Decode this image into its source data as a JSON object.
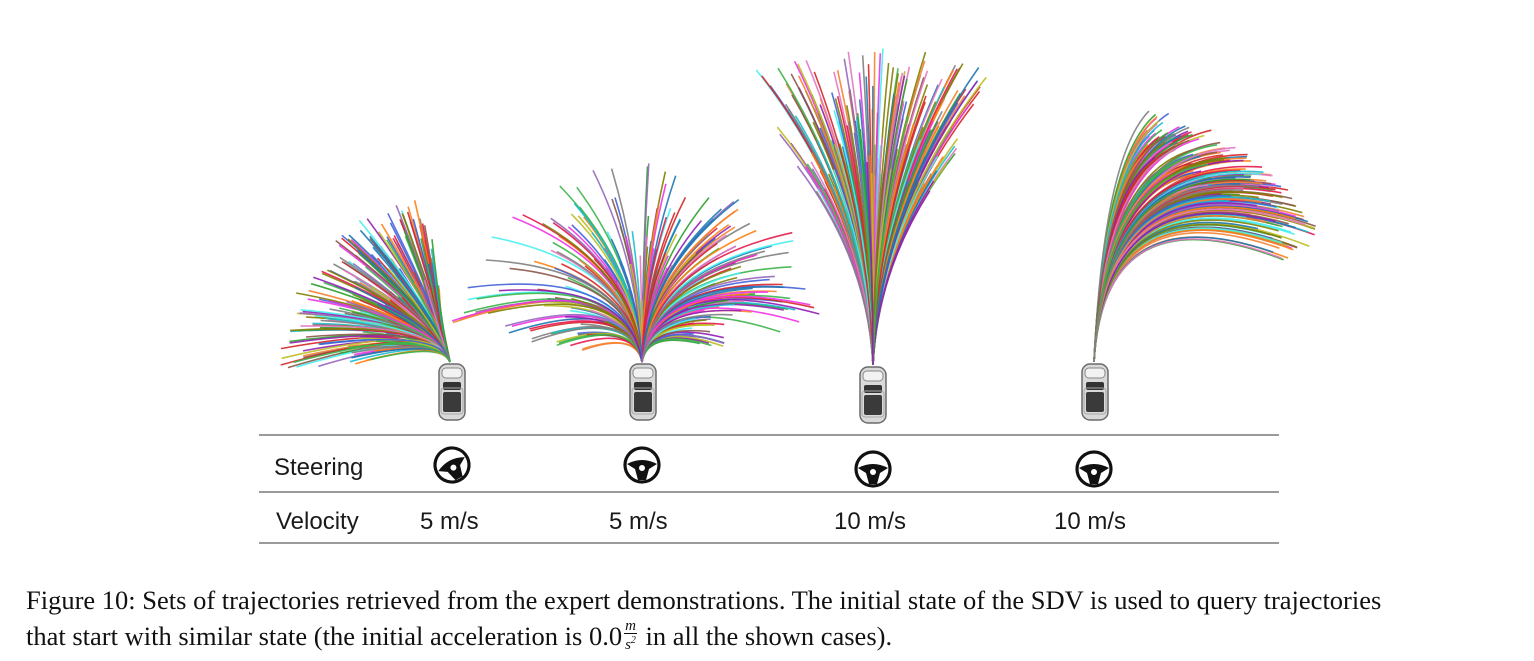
{
  "table": {
    "row_labels": {
      "steering": "Steering",
      "velocity": "Velocity"
    },
    "columns": [
      {
        "steering_icon": "steering-wheel-turned-left-icon",
        "velocity": "5 m/s"
      },
      {
        "steering_icon": "steering-wheel-straight-icon",
        "velocity": "5 m/s"
      },
      {
        "steering_icon": "steering-wheel-straight-icon",
        "velocity": "10 m/s"
      },
      {
        "steering_icon": "steering-wheel-straight-icon",
        "velocity": "10 m/s"
      }
    ]
  },
  "panels": [
    {
      "vehicle_icon": "car-top-view-icon",
      "trajectory_spread": "wide fan to the left"
    },
    {
      "vehicle_icon": "car-top-view-icon",
      "trajectory_spread": "wide fan centered"
    },
    {
      "vehicle_icon": "car-top-view-icon",
      "trajectory_spread": "narrow tall fan forward"
    },
    {
      "vehicle_icon": "car-top-view-icon",
      "trajectory_spread": "fan curving to the right"
    }
  ],
  "trajectory_palette": [
    "#1f77b4",
    "#ff7f0e",
    "#2ca02c",
    "#d62728",
    "#9467bd",
    "#8c564b",
    "#e377c2",
    "#7f7f7f",
    "#bcbd22",
    "#17becf",
    "#e6194b",
    "#3cb44b",
    "#f58231",
    "#4363d8",
    "#911eb4",
    "#46f0f0",
    "#f032e6",
    "#808000"
  ],
  "caption": {
    "line1": "Figure 10: Sets of trajectories retrieved from the expert demonstrations. The initial state of the SDV is used to query trajectories",
    "line2_before": "that start with similar state (the initial acceleration is ",
    "value": "0.0",
    "unit_num": "m",
    "unit_den": "s",
    "unit_den_exp": "2",
    "line2_after": " in all the shown cases)."
  }
}
